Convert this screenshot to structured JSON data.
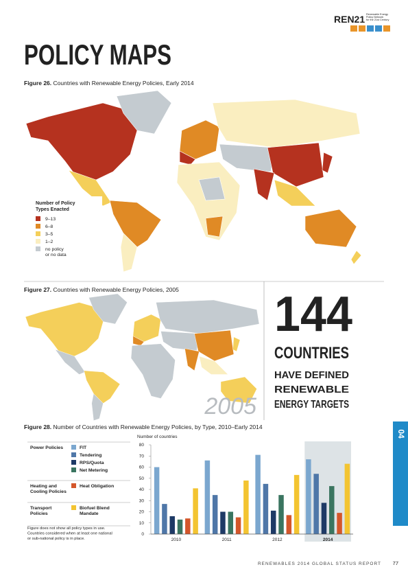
{
  "header": {
    "logo": "REN21",
    "logo_sub": [
      "Renewable Energy",
      "Policy Network",
      "for the 21st Century"
    ]
  },
  "title": "POLICY MAPS",
  "figure26": {
    "label": "Figure 26.",
    "caption": "Countries with Renewable Energy Policies, Early 2014",
    "legend_title": [
      "Number of Policy",
      "Types Enacted"
    ],
    "legend": [
      {
        "label": [
          "9–13"
        ],
        "color": "#b5321f"
      },
      {
        "label": [
          "6–8"
        ],
        "color": "#e08a25"
      },
      {
        "label": [
          "3–5"
        ],
        "color": "#f4cf5a"
      },
      {
        "label": [
          "1–2"
        ],
        "color": "#faeec0"
      },
      {
        "label": [
          "no policy",
          "or no data"
        ],
        "color": "#c4cbd0"
      }
    ]
  },
  "figure27": {
    "label": "Figure 27.",
    "caption": "Countries with Renewable Energy Policies, 2005",
    "year": "2005"
  },
  "callout": {
    "number": "144",
    "lines": [
      "COUNTRIES",
      "HAVE DEFINED",
      "RENEWABLE",
      "ENERGY TARGETS"
    ]
  },
  "chart_data": {
    "type": "bar",
    "label": "Figure 28.",
    "title": "Number of Countries with Renewable Energy Policies, by Type, 2010–Early 2014",
    "y_label": "Number of countries",
    "categories": [
      "2010",
      "2011",
      "2012",
      "2014"
    ],
    "highlight_category": 3,
    "series": [
      {
        "name": [
          "FIT"
        ],
        "color": "#7ba7cf",
        "values": [
          60,
          66,
          71,
          67
        ]
      },
      {
        "name": [
          "Tendering"
        ],
        "color": "#4f77a8",
        "values": [
          27,
          35,
          45,
          54
        ]
      },
      {
        "name": [
          "RPS/Quota"
        ],
        "color": "#1e3a66",
        "values": [
          16,
          20,
          21,
          28
        ]
      },
      {
        "name": [
          "Net Metering"
        ],
        "color": "#3a7560",
        "values": [
          13,
          20,
          35,
          43
        ]
      },
      {
        "name": [
          "Heat Obligation"
        ],
        "color": "#d4562a",
        "values": [
          14,
          15,
          17,
          19
        ]
      },
      {
        "name": [
          "Biofuel Blend",
          "Mandate"
        ],
        "color": "#f3c431",
        "values": [
          41,
          48,
          53,
          63
        ]
      }
    ],
    "legend_groups": [
      {
        "name": [
          "Power Policies"
        ],
        "series": [
          0,
          1,
          2,
          3
        ]
      },
      {
        "name": [
          "Heating and",
          "Cooling Policies"
        ],
        "series": [
          4
        ]
      },
      {
        "name": [
          "Transport",
          "Policies"
        ],
        "series": [
          5
        ]
      }
    ],
    "note": [
      "Figure does not show all policy types in use.",
      "Countries considered when at least one national",
      "or sub-national policy is in place."
    ],
    "ylim": [
      0,
      80
    ],
    "yticks": [
      0,
      10,
      20,
      30,
      40,
      50,
      60,
      70,
      80
    ],
    "grid": false
  },
  "side_tab": "04",
  "footer": {
    "text": "RENEWABLES 2014 GLOBAL STATUS REPORT",
    "page": "77"
  }
}
